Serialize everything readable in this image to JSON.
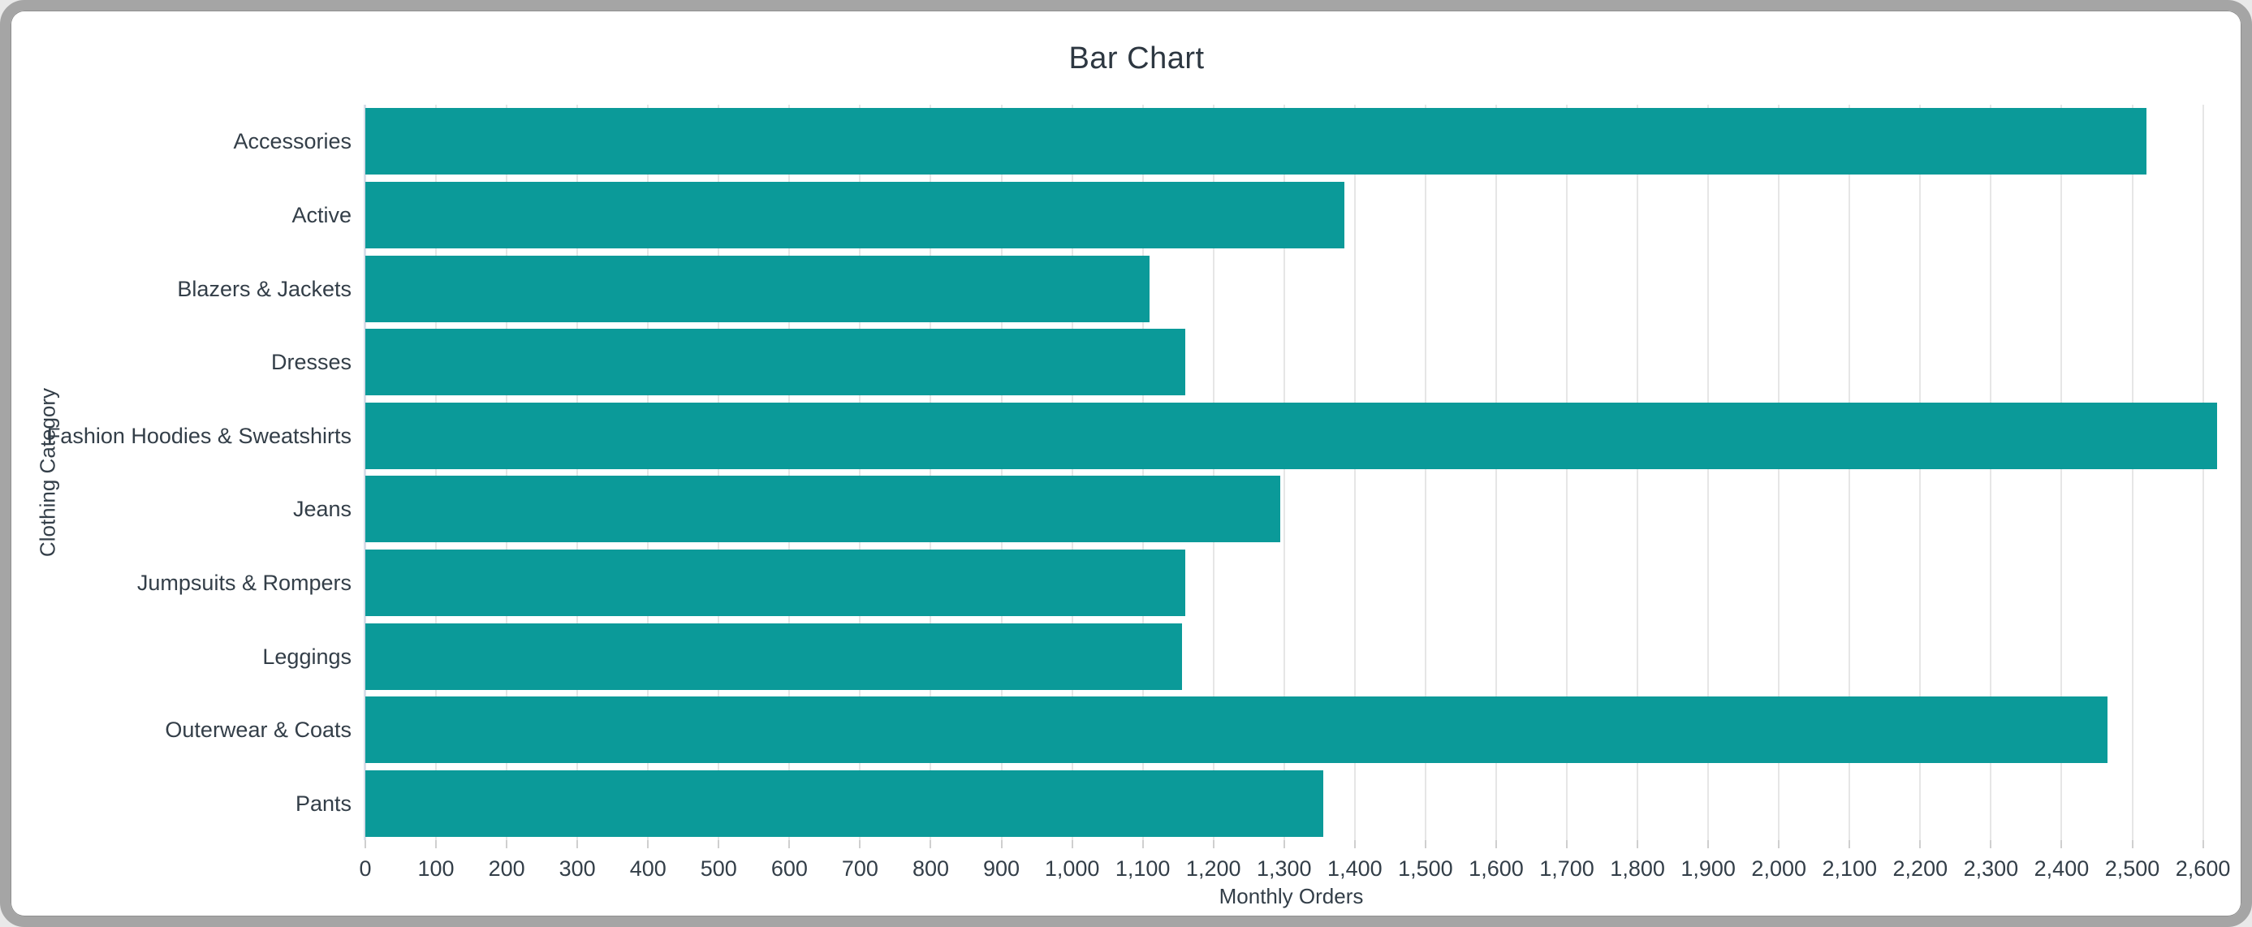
{
  "window": {
    "title": "Bar Chart"
  },
  "chart_data": {
    "type": "bar",
    "orientation": "horizontal",
    "title": "Bar Chart",
    "xlabel": "Monthly Orders",
    "ylabel": "Clothing Category",
    "categories": [
      "Accessories",
      "Active",
      "Blazers & Jackets",
      "Dresses",
      "Fashion Hoodies & Sweatshirts",
      "Jeans",
      "Jumpsuits & Rompers",
      "Leggings",
      "Outerwear & Coats",
      "Pants"
    ],
    "values": [
      2520,
      1385,
      1110,
      1160,
      2620,
      1295,
      1160,
      1155,
      2465,
      1355
    ],
    "xlim": [
      0,
      2620
    ],
    "x_tick_step": 100,
    "x_tick_labels": [
      "0",
      "100",
      "200",
      "300",
      "400",
      "500",
      "600",
      "700",
      "800",
      "900",
      "1,000",
      "1,100",
      "1,200",
      "1,300",
      "1,400",
      "1,500",
      "1,600",
      "1,700",
      "1,800",
      "1,900",
      "2,000",
      "2,100",
      "2,200",
      "2,300",
      "2,400",
      "2,500",
      "2,600"
    ],
    "grid": true,
    "legend": false,
    "bar_color": "#0b9a99",
    "grid_color": "#e6e6e6",
    "axis_line_color": "#d8dee9",
    "text_color": "#333e48"
  }
}
